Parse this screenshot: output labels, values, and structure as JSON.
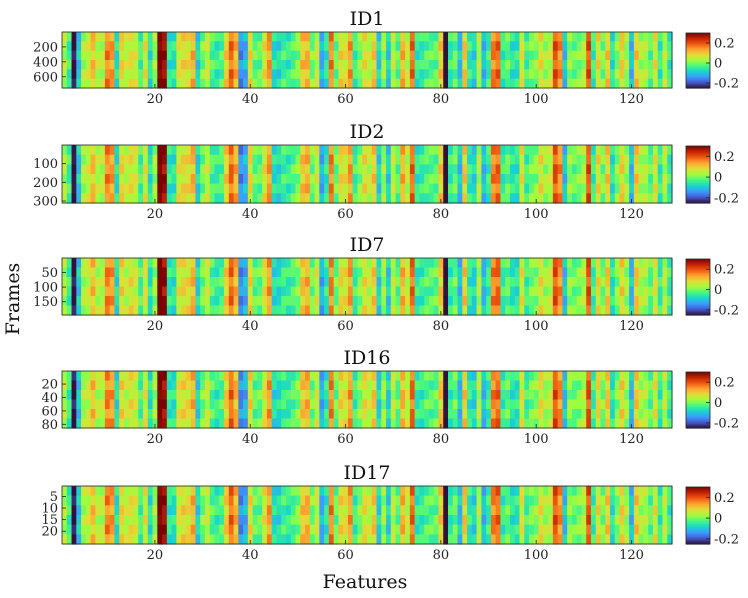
{
  "figure": {
    "xlabel": "Features",
    "ylabel": "Frames"
  },
  "chart_data": [
    {
      "type": "heatmap",
      "title": "ID1",
      "features": 128,
      "frames": 750,
      "x_ticks": [
        20,
        40,
        60,
        80,
        100,
        120
      ],
      "y_ticks": [
        200,
        400,
        600
      ],
      "colorbar": {
        "min": -0.25,
        "max": 0.3,
        "ticks": [
          0.2,
          0,
          -0.2
        ]
      }
    },
    {
      "type": "heatmap",
      "title": "ID2",
      "features": 128,
      "frames": 310,
      "x_ticks": [
        20,
        40,
        60,
        80,
        100,
        120
      ],
      "y_ticks": [
        100,
        200,
        300
      ],
      "colorbar": {
        "min": -0.25,
        "max": 0.3,
        "ticks": [
          0.2,
          0,
          -0.2
        ]
      }
    },
    {
      "type": "heatmap",
      "title": "ID7",
      "features": 128,
      "frames": 195,
      "x_ticks": [
        20,
        40,
        60,
        80,
        100,
        120
      ],
      "y_ticks": [
        50,
        100,
        150
      ],
      "colorbar": {
        "min": -0.25,
        "max": 0.3,
        "ticks": [
          0.2,
          0,
          -0.2
        ]
      }
    },
    {
      "type": "heatmap",
      "title": "ID16",
      "features": 128,
      "frames": 85,
      "x_ticks": [
        20,
        40,
        60,
        80,
        100,
        120
      ],
      "y_ticks": [
        20,
        40,
        60,
        80
      ],
      "colorbar": {
        "min": -0.25,
        "max": 0.3,
        "ticks": [
          0.2,
          0,
          -0.2
        ]
      }
    },
    {
      "type": "heatmap",
      "title": "ID17",
      "features": 128,
      "frames": 25,
      "x_ticks": [
        20,
        40,
        60,
        80,
        100,
        120
      ],
      "y_ticks": [
        5,
        10,
        15,
        20
      ],
      "colorbar": {
        "min": -0.25,
        "max": 0.3,
        "ticks": [
          0.2,
          0,
          -0.2
        ]
      }
    }
  ]
}
